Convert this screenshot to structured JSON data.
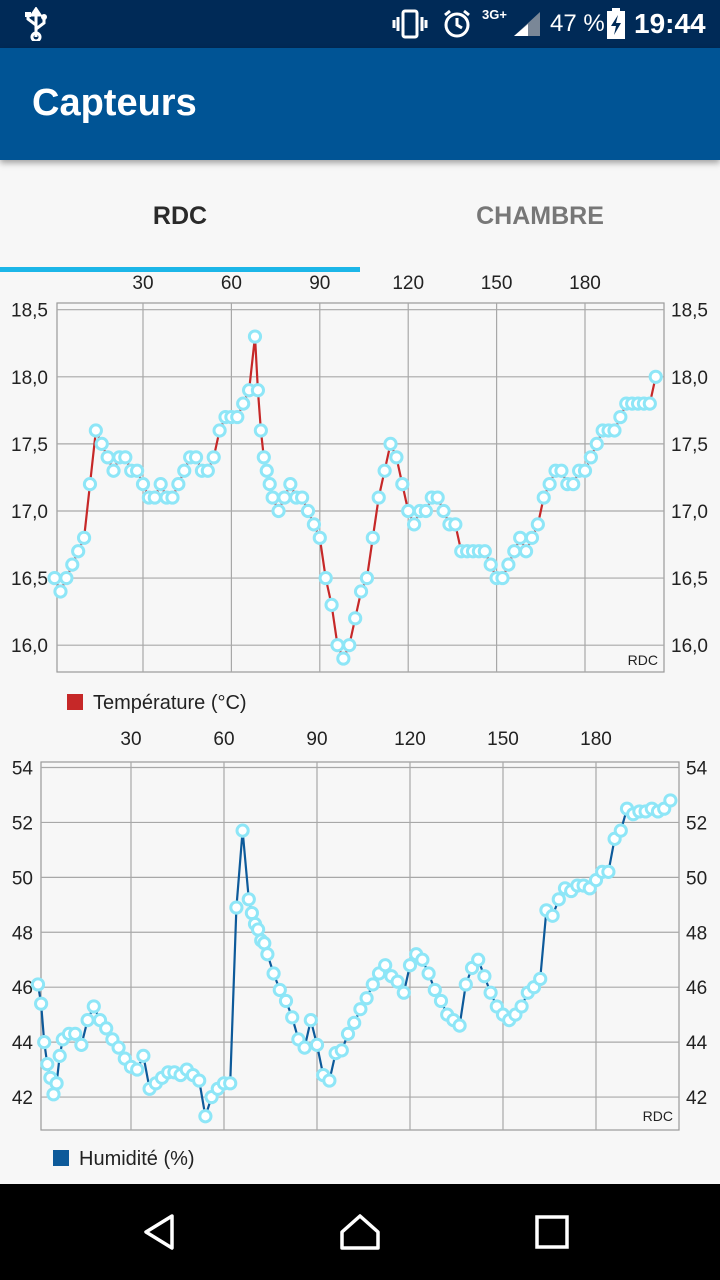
{
  "status_bar": {
    "network": "3G+",
    "battery_percent": "47 %",
    "time": "19:44",
    "icons": [
      "usb-icon",
      "vibrate-icon",
      "alarm-icon",
      "signal-icon",
      "battery-charging-icon"
    ]
  },
  "app_bar": {
    "title": "Capteurs"
  },
  "tabs": [
    {
      "label": "RDC",
      "selected": true
    },
    {
      "label": "CHAMBRE",
      "selected": false
    }
  ],
  "colors": {
    "status_bar": "#002a57",
    "app_bar": "#005495",
    "tab_indicator": "#1cb6e8",
    "temperature_line": "#c62828",
    "humidity_line": "#0d5a9a",
    "marker": "#8ee6f7"
  },
  "chart_data": [
    {
      "type": "line",
      "title": "",
      "xlabel": "",
      "ylabel": "",
      "corner_label": "RDC",
      "legend": "Température (°C)",
      "legend_position": "bottom-left",
      "x_ticks": [
        "30",
        "60",
        "90",
        "120",
        "150",
        "180"
      ],
      "x_tick_values": [
        30,
        60,
        90,
        120,
        150,
        180
      ],
      "xlim": [
        0,
        206
      ],
      "y_ticks": [
        "18,5",
        "18,0",
        "17,5",
        "17,0",
        "16,5",
        "16,0"
      ],
      "y_tick_values": [
        18.5,
        18.0,
        17.5,
        17.0,
        16.5,
        16.0
      ],
      "ylim": [
        15.8,
        18.55
      ],
      "grid": true,
      "axis_position": "top",
      "series": [
        {
          "name": "Température (°C)",
          "color": "#c62828",
          "x": [
            0,
            2,
            4,
            6,
            8,
            10,
            12,
            14,
            16,
            18,
            20,
            22,
            24,
            26,
            28,
            30,
            32,
            34,
            36,
            38,
            40,
            42,
            44,
            46,
            48,
            50,
            52,
            54,
            56,
            58,
            60,
            62,
            64,
            66,
            68,
            69,
            70,
            71,
            72,
            73,
            74,
            76,
            78,
            80,
            82,
            84,
            86,
            88,
            90,
            92,
            94,
            96,
            98,
            100,
            102,
            104,
            106,
            108,
            110,
            112,
            114,
            116,
            118,
            120,
            122,
            124,
            126,
            128,
            130,
            132,
            134,
            136,
            138,
            140,
            142,
            144,
            146,
            148,
            150,
            152,
            154,
            156,
            158,
            160,
            162,
            164,
            166,
            168,
            170,
            172,
            174,
            176,
            178,
            180,
            182,
            184,
            186,
            188,
            190,
            192,
            194,
            196,
            198,
            200,
            202,
            204
          ],
          "y": [
            16.5,
            16.4,
            16.5,
            16.6,
            16.7,
            16.8,
            17.2,
            17.6,
            17.5,
            17.4,
            17.3,
            17.4,
            17.4,
            17.3,
            17.3,
            17.2,
            17.1,
            17.1,
            17.2,
            17.1,
            17.1,
            17.2,
            17.3,
            17.4,
            17.4,
            17.3,
            17.3,
            17.4,
            17.6,
            17.7,
            17.7,
            17.7,
            17.8,
            17.9,
            18.3,
            17.9,
            17.6,
            17.4,
            17.3,
            17.2,
            17.1,
            17.0,
            17.1,
            17.2,
            17.1,
            17.1,
            17.0,
            16.9,
            16.8,
            16.5,
            16.3,
            16.0,
            15.9,
            16.0,
            16.2,
            16.4,
            16.5,
            16.8,
            17.1,
            17.3,
            17.5,
            17.4,
            17.2,
            17.0,
            16.9,
            17.0,
            17.0,
            17.1,
            17.1,
            17.0,
            16.9,
            16.9,
            16.7,
            16.7,
            16.7,
            16.7,
            16.7,
            16.6,
            16.5,
            16.5,
            16.6,
            16.7,
            16.8,
            16.7,
            16.8,
            16.9,
            17.1,
            17.2,
            17.3,
            17.3,
            17.2,
            17.2,
            17.3,
            17.3,
            17.4,
            17.5,
            17.6,
            17.6,
            17.6,
            17.7,
            17.8,
            17.8,
            17.8,
            17.8,
            17.8,
            18.0
          ]
        }
      ]
    },
    {
      "type": "line",
      "title": "",
      "xlabel": "",
      "ylabel": "",
      "corner_label": "RDC",
      "legend": "Humidité (%)",
      "legend_position": "bottom-left",
      "x_ticks": [
        "30",
        "60",
        "90",
        "120",
        "150",
        "180"
      ],
      "x_tick_values": [
        30,
        60,
        90,
        120,
        150,
        180
      ],
      "xlim": [
        0,
        206
      ],
      "y_ticks": [
        "54",
        "52",
        "50",
        "48",
        "46",
        "44",
        "42"
      ],
      "y_tick_values": [
        54,
        52,
        50,
        48,
        46,
        44,
        42
      ],
      "ylim": [
        40.8,
        54.2
      ],
      "grid": true,
      "axis_position": "top",
      "series": [
        {
          "name": "Humidité (%)",
          "color": "#0d5a9a",
          "x": [
            0,
            1,
            2,
            3,
            4,
            5,
            6,
            7,
            8,
            10,
            12,
            14,
            16,
            18,
            20,
            22,
            24,
            26,
            28,
            30,
            32,
            34,
            36,
            38,
            40,
            42,
            44,
            46,
            48,
            50,
            52,
            54,
            56,
            58,
            60,
            62,
            64,
            66,
            68,
            69,
            70,
            71,
            72,
            73,
            74,
            76,
            78,
            80,
            82,
            84,
            86,
            88,
            90,
            92,
            94,
            96,
            98,
            100,
            102,
            104,
            106,
            108,
            110,
            112,
            114,
            116,
            118,
            120,
            122,
            124,
            126,
            128,
            130,
            132,
            134,
            136,
            138,
            140,
            142,
            144,
            146,
            148,
            150,
            152,
            154,
            156,
            158,
            160,
            162,
            164,
            166,
            168,
            170,
            172,
            174,
            176,
            178,
            180,
            182,
            184,
            186,
            188,
            190,
            192,
            194,
            196,
            198,
            200,
            202,
            204
          ],
          "y": [
            46.1,
            45.4,
            44.0,
            43.2,
            42.7,
            42.1,
            42.5,
            43.5,
            44.1,
            44.3,
            44.3,
            43.9,
            44.8,
            45.3,
            44.8,
            44.5,
            44.1,
            43.8,
            43.4,
            43.1,
            43.0,
            43.5,
            42.3,
            42.5,
            42.7,
            42.9,
            42.9,
            42.8,
            43.0,
            42.8,
            42.6,
            41.3,
            42.0,
            42.3,
            42.5,
            42.5,
            48.9,
            51.7,
            49.2,
            48.7,
            48.3,
            48.1,
            47.7,
            47.6,
            47.2,
            46.5,
            45.9,
            45.5,
            44.9,
            44.1,
            43.8,
            44.8,
            43.9,
            42.8,
            42.6,
            43.6,
            43.7,
            44.3,
            44.7,
            45.2,
            45.6,
            46.1,
            46.5,
            46.8,
            46.4,
            46.2,
            45.8,
            46.8,
            47.2,
            47.0,
            46.5,
            45.9,
            45.5,
            45.0,
            44.8,
            44.6,
            46.1,
            46.7,
            47.0,
            46.4,
            45.8,
            45.3,
            45.0,
            44.8,
            45.0,
            45.3,
            45.8,
            46.0,
            46.3,
            48.8,
            48.6,
            49.2,
            49.6,
            49.5,
            49.7,
            49.7,
            49.6,
            49.9,
            50.2,
            50.2,
            51.4,
            51.7,
            52.5,
            52.3,
            52.4,
            52.4,
            52.5,
            52.4,
            52.5,
            52.8
          ]
        }
      ]
    }
  ],
  "navigation": {
    "icons": [
      "back-icon",
      "home-icon",
      "recents-icon"
    ]
  }
}
